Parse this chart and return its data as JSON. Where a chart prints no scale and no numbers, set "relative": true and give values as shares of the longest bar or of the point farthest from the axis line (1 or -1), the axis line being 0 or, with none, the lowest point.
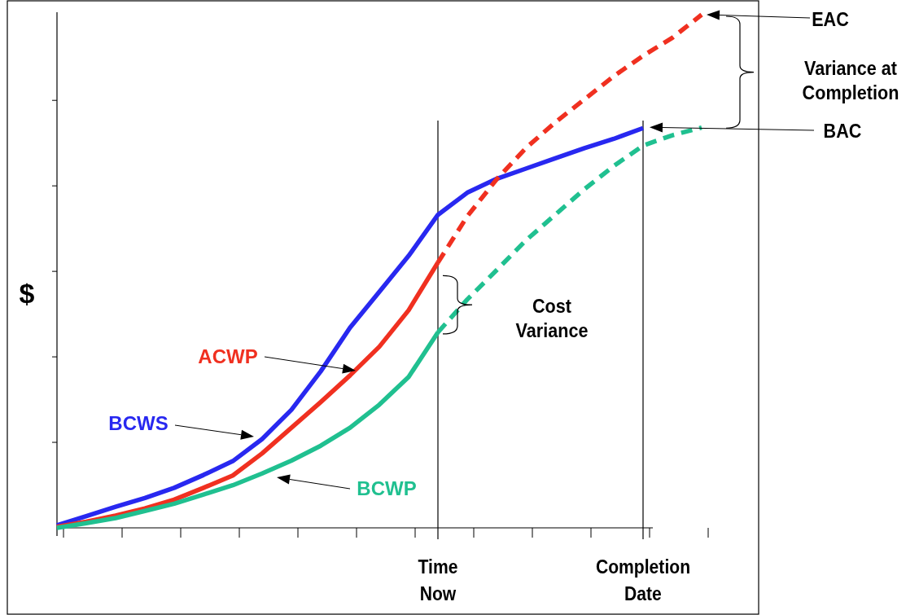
{
  "chart_data": {
    "type": "line",
    "relative": true,
    "ylabel": "$",
    "marker": "none",
    "grid": "x",
    "categories": [
      null,
      null,
      null,
      null,
      null,
      null,
      null,
      null,
      null,
      null,
      null,
      null,
      null,
      "Time Now",
      null,
      null,
      null,
      null,
      null,
      null,
      "Completion Date",
      null,
      null
    ],
    "series": [
      {
        "name": "BCWS",
        "color": "#2828f0",
        "line_style": "solid",
        "values": [
          0.005,
          0.023,
          0.041,
          0.058,
          0.078,
          0.103,
          0.13,
          0.173,
          0.23,
          0.305,
          0.39,
          0.46,
          0.53,
          0.61,
          0.653,
          0.68,
          0.7,
          0.72,
          0.74,
          0.758,
          0.779,
          null,
          null
        ]
      },
      {
        "name": "ACWP",
        "color": "#f03020",
        "line_style": "solid",
        "values": [
          0.002,
          0.012,
          0.024,
          0.038,
          0.055,
          0.078,
          0.102,
          0.145,
          0.195,
          0.245,
          0.297,
          0.353,
          0.424,
          0.517,
          null,
          null,
          null,
          null,
          null,
          null,
          null,
          null,
          null
        ]
      },
      {
        "color": "#f03020",
        "line_style": "dashed",
        "values": [
          null,
          null,
          null,
          null,
          null,
          null,
          null,
          null,
          null,
          null,
          null,
          null,
          null,
          0.517,
          0.607,
          0.679,
          0.74,
          0.79,
          0.835,
          0.88,
          0.92,
          0.955,
          1.0
        ]
      },
      {
        "name": "BCWP",
        "color": "#20c090",
        "line_style": "solid",
        "values": [
          0,
          0.009,
          0.019,
          0.033,
          0.047,
          0.065,
          0.083,
          0.106,
          0.131,
          0.16,
          0.195,
          0.24,
          0.294,
          0.381,
          null,
          null,
          null,
          null,
          null,
          null,
          null,
          null,
          null
        ]
      },
      {
        "color": "#20c090",
        "line_style": "dashed",
        "values": [
          null,
          null,
          null,
          null,
          null,
          null,
          null,
          null,
          null,
          null,
          null,
          null,
          null,
          0.381,
          0.445,
          0.502,
          0.56,
          0.61,
          0.66,
          0.705,
          0.745,
          0.765,
          0.78
        ]
      }
    ],
    "annotations": [
      "EAC",
      "BAC",
      "Variance at Completion",
      "Cost Variance"
    ]
  }
}
